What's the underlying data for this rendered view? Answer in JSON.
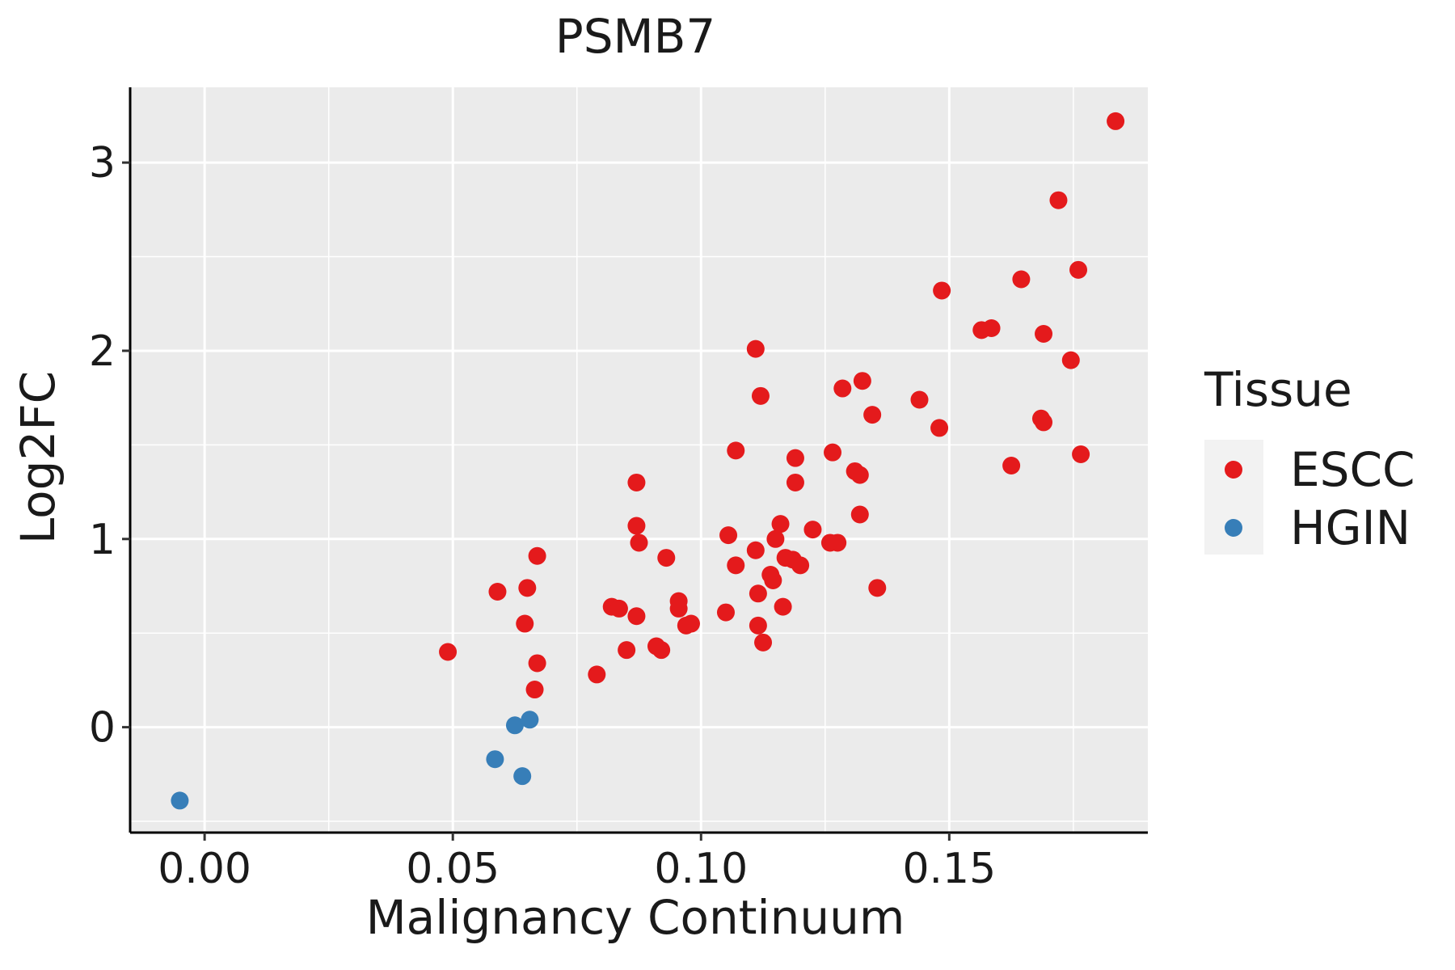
{
  "chart_data": {
    "type": "scatter",
    "title": "PSMB7",
    "xlabel": "Malignancy Continuum",
    "ylabel": "Log2FC",
    "xlim": [
      -0.015,
      0.19
    ],
    "ylim": [
      -0.56,
      3.4
    ],
    "x_ticks": [
      0.0,
      0.05,
      0.1,
      0.15
    ],
    "x_tick_labels": [
      "0.00",
      "0.05",
      "0.10",
      "0.15"
    ],
    "y_ticks": [
      0,
      1,
      2,
      3
    ],
    "y_tick_labels": [
      "0",
      "1",
      "2",
      "3"
    ],
    "grid": true,
    "legend": {
      "title": "Tissue",
      "position": "right"
    },
    "series": [
      {
        "name": "ESCC",
        "color": "#e41a1c",
        "points": [
          [
            0.049,
            0.4
          ],
          [
            0.059,
            0.72
          ],
          [
            0.0645,
            0.55
          ],
          [
            0.065,
            0.74
          ],
          [
            0.0665,
            0.2
          ],
          [
            0.067,
            0.34
          ],
          [
            0.067,
            0.91
          ],
          [
            0.079,
            0.28
          ],
          [
            0.082,
            0.64
          ],
          [
            0.0835,
            0.63
          ],
          [
            0.085,
            0.41
          ],
          [
            0.087,
            0.59
          ],
          [
            0.087,
            1.3
          ],
          [
            0.087,
            1.07
          ],
          [
            0.0875,
            0.98
          ],
          [
            0.091,
            0.43
          ],
          [
            0.092,
            0.41
          ],
          [
            0.093,
            0.9
          ],
          [
            0.0955,
            0.67
          ],
          [
            0.0955,
            0.63
          ],
          [
            0.097,
            0.54
          ],
          [
            0.098,
            0.55
          ],
          [
            0.105,
            0.61
          ],
          [
            0.1055,
            1.02
          ],
          [
            0.107,
            1.47
          ],
          [
            0.107,
            0.86
          ],
          [
            0.111,
            0.94
          ],
          [
            0.111,
            2.01
          ],
          [
            0.1115,
            0.71
          ],
          [
            0.1115,
            0.54
          ],
          [
            0.112,
            1.76
          ],
          [
            0.1125,
            0.45
          ],
          [
            0.114,
            0.81
          ],
          [
            0.1145,
            0.78
          ],
          [
            0.115,
            1.0
          ],
          [
            0.116,
            1.08
          ],
          [
            0.1165,
            0.64
          ],
          [
            0.117,
            0.9
          ],
          [
            0.1185,
            0.89
          ],
          [
            0.119,
            1.43
          ],
          [
            0.119,
            1.3
          ],
          [
            0.12,
            0.86
          ],
          [
            0.1225,
            1.05
          ],
          [
            0.126,
            0.98
          ],
          [
            0.1265,
            1.46
          ],
          [
            0.1275,
            0.98
          ],
          [
            0.1285,
            1.8
          ],
          [
            0.131,
            1.36
          ],
          [
            0.132,
            1.34
          ],
          [
            0.132,
            1.13
          ],
          [
            0.1325,
            1.84
          ],
          [
            0.1345,
            1.66
          ],
          [
            0.1355,
            0.74
          ],
          [
            0.144,
            1.74
          ],
          [
            0.148,
            1.59
          ],
          [
            0.1485,
            2.32
          ],
          [
            0.1565,
            2.11
          ],
          [
            0.1585,
            2.12
          ],
          [
            0.1625,
            1.39
          ],
          [
            0.1645,
            2.38
          ],
          [
            0.1685,
            1.64
          ],
          [
            0.169,
            1.62
          ],
          [
            0.169,
            2.09
          ],
          [
            0.172,
            2.8
          ],
          [
            0.1745,
            1.95
          ],
          [
            0.176,
            2.43
          ],
          [
            0.1765,
            1.45
          ],
          [
            0.1835,
            3.22
          ]
        ]
      },
      {
        "name": "HGIN",
        "color": "#377eb8",
        "points": [
          [
            -0.005,
            -0.39
          ],
          [
            0.0585,
            -0.17
          ],
          [
            0.0625,
            0.01
          ],
          [
            0.064,
            -0.26
          ],
          [
            0.0655,
            0.04
          ]
        ]
      }
    ]
  }
}
